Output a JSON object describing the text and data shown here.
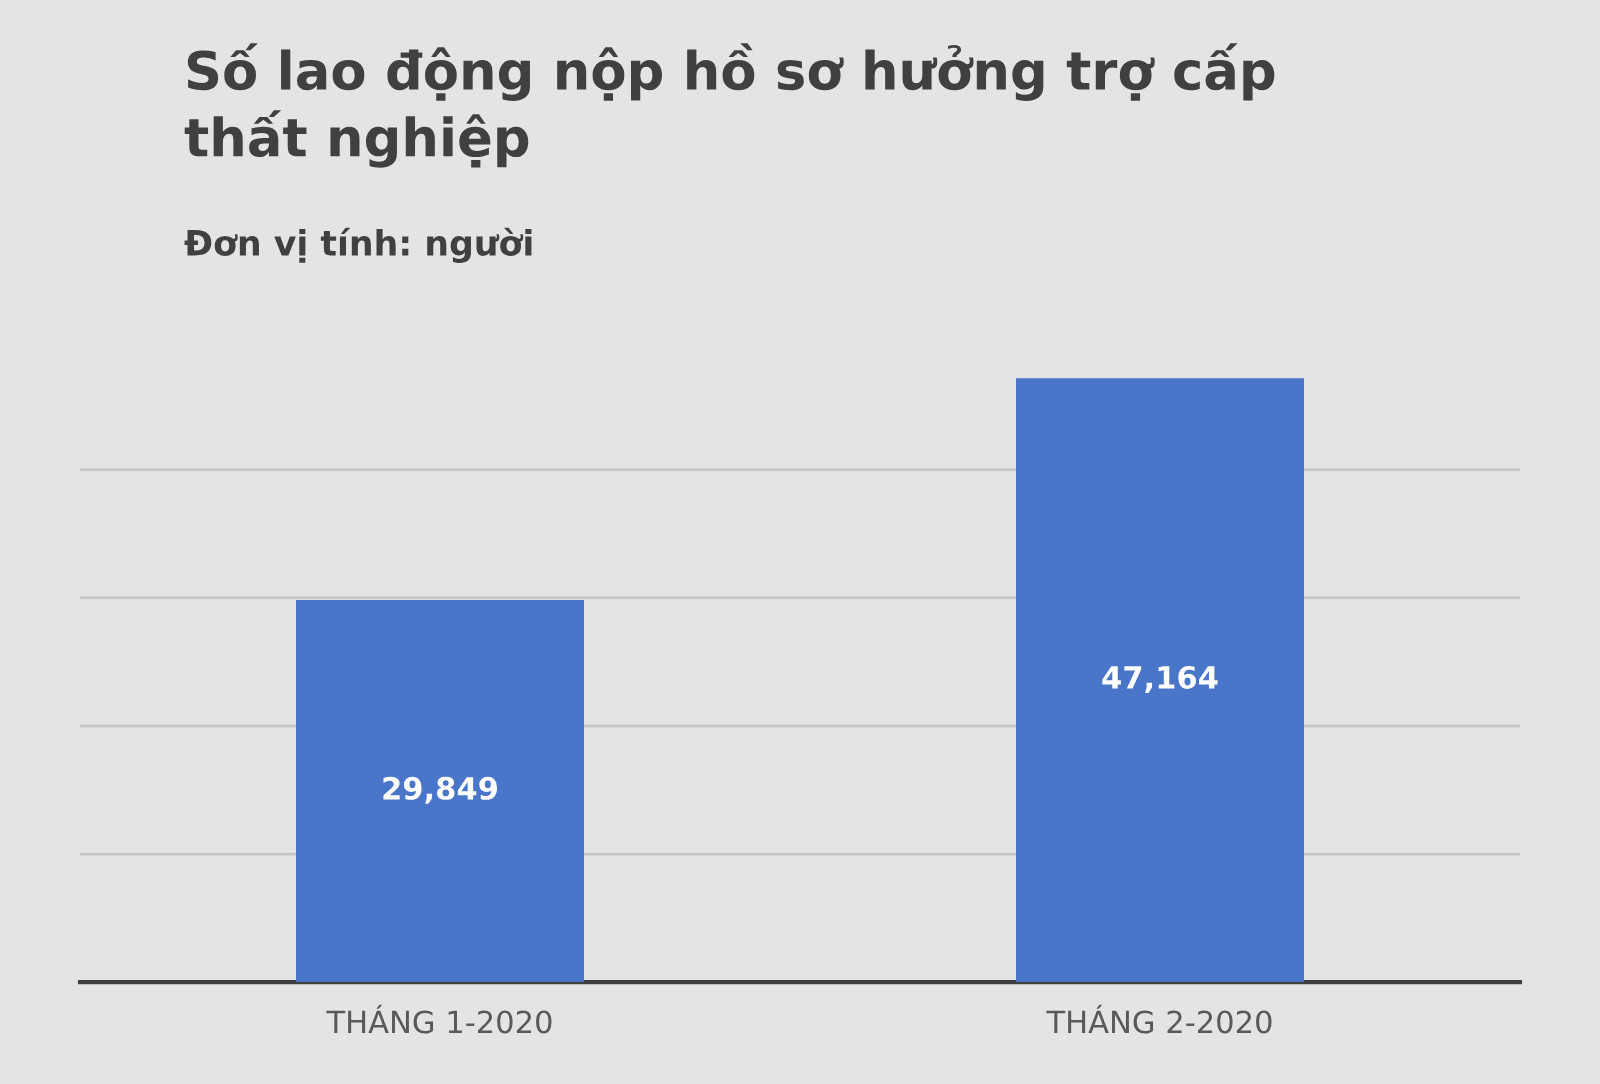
{
  "chart_data": {
    "type": "bar",
    "title": "Số lao động nộp hồ sơ hưởng trợ cấp thất nghiệp",
    "subtitle": "Đơn vị tính: người",
    "categories": [
      "THÁNG 1-2020",
      "THÁNG 2-2020"
    ],
    "values": [
      29849,
      47164
    ],
    "value_labels": [
      "29,849",
      "47,164"
    ],
    "color": "#4a76c9",
    "grid": "y",
    "tick_labels": "x"
  }
}
